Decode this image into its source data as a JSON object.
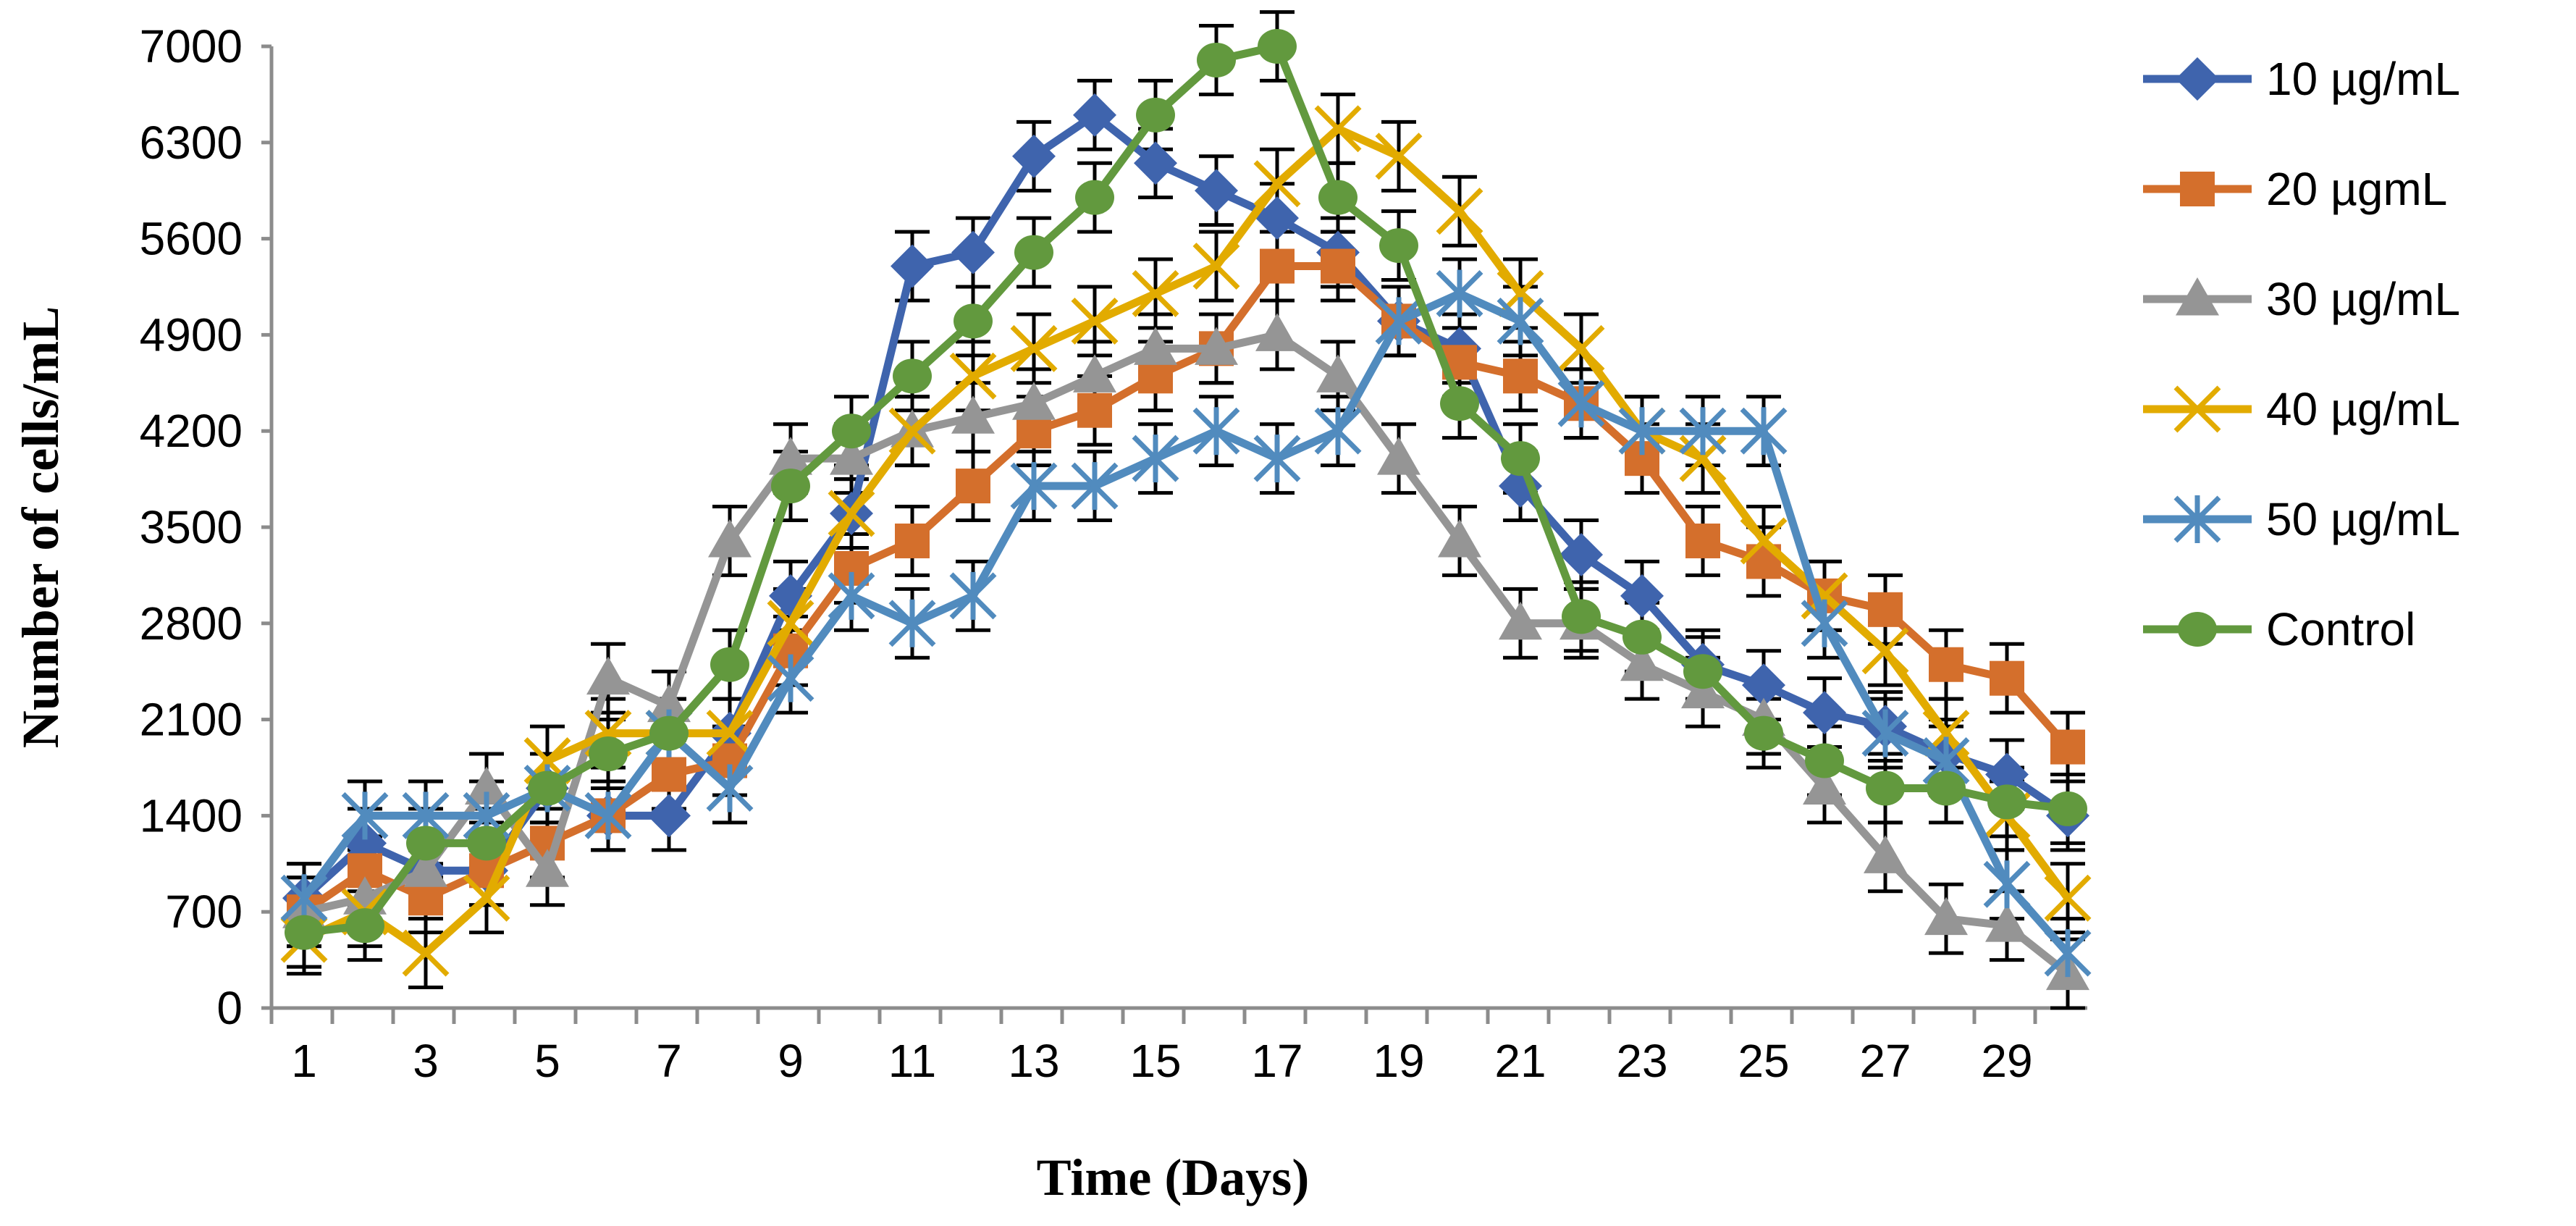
{
  "chart_data": {
    "type": "line",
    "title": "",
    "xlabel": "Time (Days)",
    "ylabel": "Number of cells/mL",
    "ylim": [
      0,
      7000
    ],
    "yticks": [
      0,
      700,
      1400,
      2100,
      2800,
      3500,
      4200,
      4900,
      5600,
      6300,
      7000
    ],
    "xlim": [
      1,
      30
    ],
    "xtick_labels": [
      1,
      3,
      5,
      7,
      9,
      11,
      13,
      15,
      17,
      19,
      21,
      23,
      25,
      27,
      29
    ],
    "x": [
      1,
      2,
      3,
      4,
      5,
      6,
      7,
      8,
      9,
      10,
      11,
      12,
      13,
      14,
      15,
      16,
      17,
      18,
      19,
      20,
      21,
      22,
      23,
      24,
      25,
      26,
      27,
      28,
      29,
      30
    ],
    "grid": false,
    "legend_position": "right",
    "error_bar": 250,
    "series": [
      {
        "name": "10 µg/mL",
        "color": "#3f64ad",
        "marker": "diamond",
        "values": [
          800,
          1200,
          1000,
          1000,
          1600,
          1400,
          1400,
          2000,
          3000,
          3600,
          5400,
          5500,
          6200,
          6500,
          6150,
          5950,
          5750,
          5500,
          5000,
          4800,
          3800,
          3300,
          3000,
          2500,
          2350,
          2150,
          2050,
          1850,
          1700,
          1400
        ]
      },
      {
        "name": "20 µgmL",
        "color": "#d46f2c",
        "marker": "square",
        "values": [
          700,
          1000,
          800,
          1000,
          1200,
          1400,
          1700,
          1800,
          2600,
          3200,
          3400,
          3800,
          4200,
          4350,
          4600,
          4800,
          5400,
          5400,
          5000,
          4700,
          4600,
          4400,
          4000,
          3400,
          3250,
          3000,
          2900,
          2500,
          2400,
          1900
        ]
      },
      {
        "name": "30 µg/mL",
        "color": "#959595",
        "marker": "triangle",
        "values": [
          700,
          800,
          1000,
          1600,
          1000,
          2400,
          2200,
          3400,
          4000,
          4000,
          4200,
          4300,
          4400,
          4600,
          4800,
          4800,
          4900,
          4600,
          4000,
          3400,
          2800,
          2800,
          2500,
          2300,
          2100,
          1600,
          1100,
          650,
          600,
          250
        ]
      },
      {
        "name": "40 µg/mL",
        "color": "#e2ab00",
        "marker": "x",
        "values": [
          500,
          700,
          400,
          800,
          1800,
          2000,
          2000,
          2000,
          2800,
          3600,
          4200,
          4600,
          4800,
          5000,
          5200,
          5400,
          6000,
          6400,
          6200,
          5800,
          5200,
          4800,
          4200,
          4000,
          3400,
          3000,
          2600,
          2000,
          1400,
          800
        ]
      },
      {
        "name": "50 µg/mL",
        "color": "#518bbe",
        "marker": "star",
        "values": [
          800,
          1400,
          1400,
          1400,
          1600,
          1400,
          2000,
          1600,
          2400,
          3000,
          2800,
          3000,
          3800,
          3800,
          4000,
          4200,
          4000,
          4200,
          5000,
          5200,
          5000,
          4400,
          4200,
          4200,
          4200,
          2800,
          2000,
          1800,
          900,
          400
        ]
      },
      {
        "name": "Control",
        "color": "#62993e",
        "marker": "circle",
        "values": [
          550,
          600,
          1200,
          1200,
          1600,
          1850,
          2000,
          2500,
          3800,
          4200,
          4600,
          5000,
          5500,
          5900,
          6500,
          6900,
          7000,
          5900,
          5550,
          4400,
          4000,
          2850,
          2700,
          2450,
          2000,
          1800,
          1600,
          1600,
          1500,
          1450
        ]
      }
    ]
  }
}
